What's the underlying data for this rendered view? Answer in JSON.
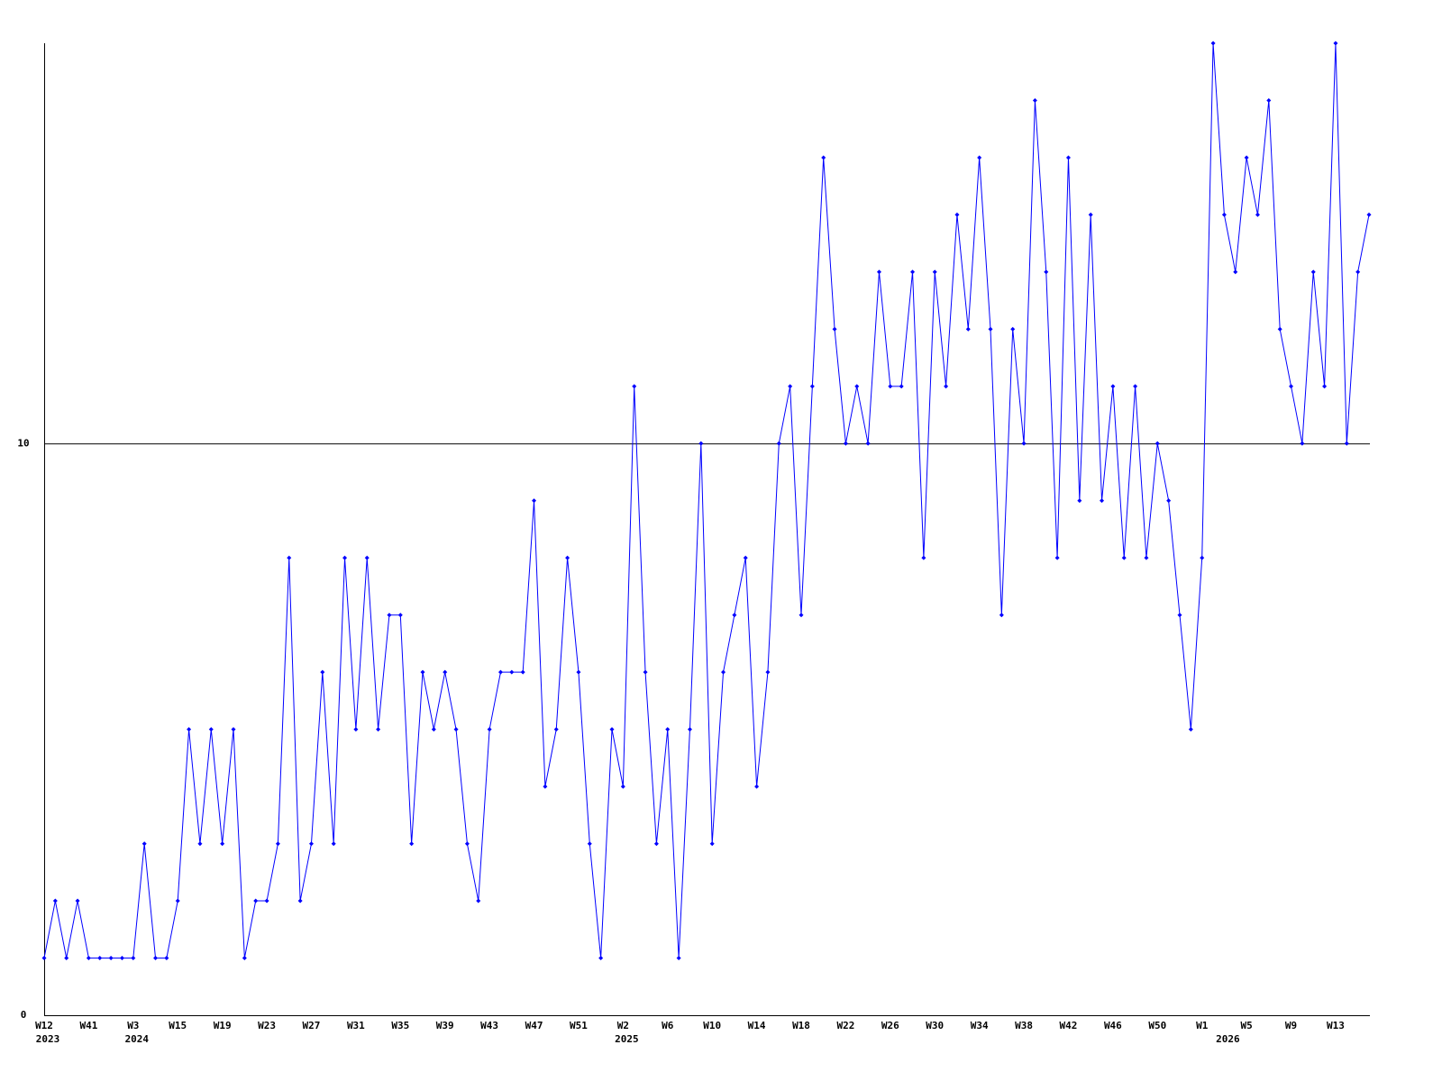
{
  "chart_data": {
    "type": "line",
    "color": "#0000ff",
    "categories": [
      "W12",
      null,
      null,
      null,
      "W41",
      null,
      null,
      null,
      "W3",
      null,
      null,
      null,
      "W15",
      null,
      null,
      null,
      "W19",
      null,
      null,
      null,
      "W23",
      null,
      null,
      null,
      "W27",
      null,
      null,
      null,
      "W31",
      null,
      null,
      null,
      "W35",
      null,
      null,
      null,
      "W39",
      null,
      null,
      null,
      "W43",
      null,
      null,
      null,
      "W47",
      null,
      null,
      null,
      "W51",
      null,
      null,
      null,
      "W2",
      null,
      null,
      null,
      "W6",
      null,
      null,
      null,
      "W10",
      null,
      null,
      null,
      "W14",
      null,
      null,
      null,
      "W18",
      null,
      null,
      null,
      "W22",
      null,
      null,
      null,
      "W26",
      null,
      null,
      null,
      "W30",
      null,
      null,
      null,
      "W34",
      null,
      null,
      null,
      "W38",
      null,
      null,
      null,
      "W42",
      null,
      null,
      null,
      "W46",
      null,
      null,
      null,
      "W50",
      null,
      null,
      null,
      "W1",
      null,
      null,
      null,
      "W5",
      null,
      null,
      null,
      "W9",
      null,
      null,
      null,
      "W13",
      null,
      null,
      null
    ],
    "year_labels": [
      "2023",
      null,
      null,
      null,
      null,
      null,
      null,
      null,
      "2024",
      null,
      null,
      null,
      null,
      null,
      null,
      null,
      null,
      null,
      null,
      null,
      null,
      null,
      null,
      null,
      null,
      null,
      null,
      null,
      null,
      null,
      null,
      null,
      null,
      null,
      null,
      null,
      null,
      null,
      null,
      null,
      null,
      null,
      null,
      null,
      null,
      null,
      null,
      null,
      null,
      null,
      null,
      null,
      "2025",
      null,
      null,
      null,
      null,
      null,
      null,
      null,
      null,
      null,
      null,
      null,
      null,
      null,
      null,
      null,
      null,
      null,
      null,
      null,
      null,
      null,
      null,
      null,
      null,
      null,
      null,
      null,
      null,
      null,
      null,
      null,
      null,
      null,
      null,
      null,
      null,
      null,
      null,
      null,
      null,
      null,
      null,
      null,
      null,
      null,
      null,
      null,
      null,
      null,
      null,
      null,
      null,
      null,
      "2026",
      null,
      null,
      null,
      null,
      null,
      null,
      null,
      null,
      null,
      null,
      null,
      null,
      null,
      null,
      null
    ],
    "values": [
      1,
      2,
      1,
      2,
      1,
      1,
      1,
      1,
      1,
      3,
      1,
      1,
      2,
      5,
      3,
      5,
      3,
      5,
      1,
      2,
      2,
      3,
      8,
      2,
      3,
      6,
      3,
      8,
      5,
      8,
      5,
      7,
      7,
      3,
      6,
      5,
      6,
      5,
      3,
      2,
      5,
      6,
      6,
      6,
      9,
      4,
      5,
      8,
      6,
      3,
      1,
      5,
      4,
      11,
      6,
      3,
      5,
      1,
      5,
      10,
      3,
      6,
      7,
      8,
      4,
      6,
      10,
      11,
      7,
      11,
      15,
      12,
      10,
      11,
      10,
      13,
      11,
      11,
      13,
      8,
      13,
      11,
      14,
      12,
      15,
      12,
      7,
      12,
      10,
      16,
      13,
      8,
      15,
      9,
      14,
      9,
      11,
      8,
      11,
      8,
      10,
      9,
      7,
      5,
      8,
      17,
      14,
      13,
      15,
      14,
      16,
      12,
      11,
      10,
      13,
      11,
      17,
      10,
      13,
      14
    ],
    "ylim": [
      0,
      17
    ],
    "yticks": [
      0,
      10
    ],
    "grid": true
  }
}
